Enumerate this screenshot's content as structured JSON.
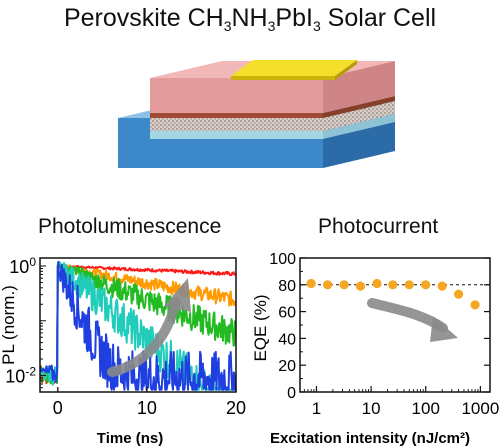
{
  "title": {
    "prefix": "Perovskite CH",
    "sub1": "3",
    "mid1": "NH",
    "sub2": "3",
    "mid2": "PbI",
    "sub3": "3",
    "suffix": " Solar Cell"
  },
  "device": {
    "layers": [
      {
        "name": "substrate",
        "color": "#3d88c9"
      },
      {
        "name": "electron-transport",
        "color": "#a5d6e4"
      },
      {
        "name": "perovskite-porous",
        "color": "#cfc7c1"
      },
      {
        "name": "perovskite-absorber",
        "color": "#9e4a35"
      },
      {
        "name": "hole-transport",
        "color": "#e39b9b"
      },
      {
        "name": "gold-contact",
        "color": "#e9cf16"
      }
    ]
  },
  "chart_data": [
    {
      "type": "line",
      "title": "Photoluminescence",
      "xlabel": "Time (ns)",
      "ylabel": "PL (norm.)",
      "xlim": [
        -2,
        20
      ],
      "ylim_log": [
        0.005,
        1.4
      ],
      "yscale": "log",
      "x_ticks": [
        "0",
        "10",
        "20"
      ],
      "y_ticks": [
        "10",
        "10"
      ],
      "y_tick_exponents": [
        "0",
        "-2"
      ],
      "annotation": "arrow indicating increasing excitation intensity",
      "series": [
        {
          "color": "#ff1a1a",
          "tau_ns": 60,
          "floor": 0
        },
        {
          "color": "#ff9a00",
          "tau_ns": 14,
          "floor": 0
        },
        {
          "color": "#22bb22",
          "tau_ns": 7,
          "floor": 0
        },
        {
          "color": "#22ccbb",
          "tau_ns": 3.2,
          "floor": 0
        },
        {
          "color": "#1f3fe0",
          "tau_ns": 1.2,
          "floor": 0.009
        }
      ]
    },
    {
      "type": "scatter",
      "title": "Photocurrent",
      "xlabel": "Excitation intensity (nJ/cm²)",
      "ylabel": "EQE (%)",
      "xscale": "log",
      "xlim": [
        0.5,
        1500
      ],
      "ylim": [
        0,
        100
      ],
      "x_ticks": [
        "1",
        "10",
        "100",
        "1000"
      ],
      "y_ticks": [
        "0",
        "20",
        "40",
        "60",
        "80",
        "100"
      ],
      "reference_line": 80,
      "color": "#f5a623",
      "x": [
        0.8,
        1.6,
        3.2,
        6.4,
        12.8,
        25,
        50,
        100,
        200,
        400,
        800
      ],
      "y": [
        81,
        80,
        80,
        79,
        81,
        80,
        80,
        80,
        79,
        73,
        65
      ],
      "annotation": "arrow indicating EQE drop at high intensity"
    }
  ]
}
